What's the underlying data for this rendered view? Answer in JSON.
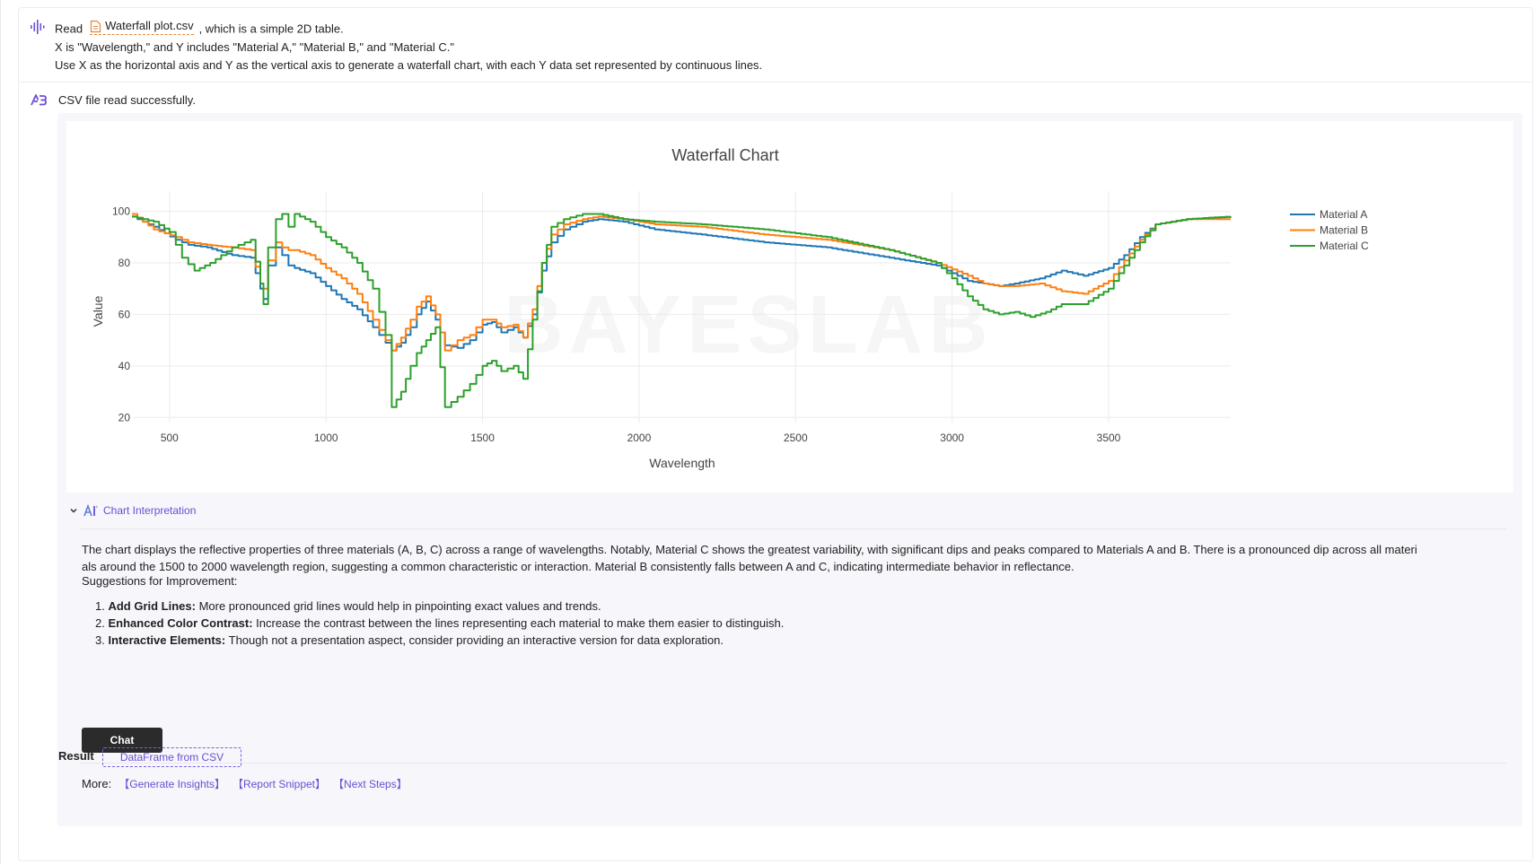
{
  "user_message": {
    "read_label": "Read",
    "file_name": "Waterfall plot.csv",
    "after_file": ", which is a simple 2D table.",
    "line2": "X is \"Wavelength,\" and Y includes \"Material A,\" \"Material B,\" and \"Material C.\"",
    "line3": "Use X as the horizontal axis and Y as the vertical axis to generate a waterfall chart, with each Y data set represented by continuous lines."
  },
  "assistant": {
    "status": "CSV file read successfully."
  },
  "chart_data": {
    "type": "line",
    "title": "Waterfall Chart",
    "xlabel": "Wavelength",
    "ylabel": "Value",
    "xlim": [
      380,
      3890
    ],
    "ylim": [
      18,
      103
    ],
    "xticks": [
      500,
      1000,
      1500,
      2000,
      2500,
      3000,
      3500
    ],
    "yticks": [
      20,
      40,
      60,
      80,
      100
    ],
    "grid": true,
    "legend_position": "top-right",
    "watermark": "BAYESLAB",
    "series": [
      {
        "name": "Material A",
        "color": "#1f77b4",
        "points": [
          [
            380,
            98
          ],
          [
            450,
            94
          ],
          [
            520,
            89
          ],
          [
            560,
            87
          ],
          [
            620,
            86
          ],
          [
            700,
            83
          ],
          [
            760,
            82
          ],
          [
            790,
            70
          ],
          [
            800,
            66
          ],
          [
            815,
            79
          ],
          [
            840,
            86
          ],
          [
            860,
            83
          ],
          [
            880,
            79
          ],
          [
            900,
            78
          ],
          [
            950,
            76
          ],
          [
            1000,
            71
          ],
          [
            1050,
            66
          ],
          [
            1100,
            62
          ],
          [
            1150,
            55
          ],
          [
            1190,
            49
          ],
          [
            1210,
            46
          ],
          [
            1240,
            49
          ],
          [
            1270,
            55
          ],
          [
            1290,
            60
          ],
          [
            1320,
            65
          ],
          [
            1350,
            58
          ],
          [
            1380,
            48
          ],
          [
            1420,
            47
          ],
          [
            1460,
            50
          ],
          [
            1500,
            56
          ],
          [
            1530,
            57
          ],
          [
            1560,
            53
          ],
          [
            1600,
            55
          ],
          [
            1630,
            51
          ],
          [
            1660,
            60
          ],
          [
            1690,
            77
          ],
          [
            1720,
            88
          ],
          [
            1760,
            93
          ],
          [
            1820,
            96
          ],
          [
            1870,
            97
          ],
          [
            1950,
            96
          ],
          [
            2050,
            93
          ],
          [
            2200,
            91
          ],
          [
            2400,
            88
          ],
          [
            2600,
            86
          ],
          [
            2800,
            82
          ],
          [
            2950,
            79
          ],
          [
            3050,
            73
          ],
          [
            3100,
            72
          ],
          [
            3150,
            71
          ],
          [
            3200,
            72
          ],
          [
            3280,
            74
          ],
          [
            3350,
            77
          ],
          [
            3420,
            75
          ],
          [
            3500,
            78
          ],
          [
            3550,
            83
          ],
          [
            3600,
            90
          ],
          [
            3650,
            95
          ],
          [
            3750,
            97
          ],
          [
            3890,
            98
          ]
        ]
      },
      {
        "name": "Material B",
        "color": "#ff7f0e",
        "points": [
          [
            380,
            99
          ],
          [
            450,
            93
          ],
          [
            520,
            90
          ],
          [
            560,
            88
          ],
          [
            620,
            87
          ],
          [
            700,
            86
          ],
          [
            760,
            85
          ],
          [
            790,
            72
          ],
          [
            800,
            70
          ],
          [
            815,
            81
          ],
          [
            840,
            88
          ],
          [
            860,
            86
          ],
          [
            880,
            85
          ],
          [
            900,
            85
          ],
          [
            950,
            83
          ],
          [
            1000,
            78
          ],
          [
            1050,
            74
          ],
          [
            1100,
            68
          ],
          [
            1150,
            58
          ],
          [
            1190,
            50
          ],
          [
            1210,
            46
          ],
          [
            1240,
            51
          ],
          [
            1270,
            58
          ],
          [
            1290,
            63
          ],
          [
            1320,
            67
          ],
          [
            1350,
            60
          ],
          [
            1380,
            46
          ],
          [
            1420,
            50
          ],
          [
            1460,
            52
          ],
          [
            1500,
            58
          ],
          [
            1530,
            58
          ],
          [
            1560,
            55
          ],
          [
            1600,
            56
          ],
          [
            1630,
            51
          ],
          [
            1660,
            62
          ],
          [
            1690,
            80
          ],
          [
            1720,
            91
          ],
          [
            1760,
            95
          ],
          [
            1820,
            97
          ],
          [
            1870,
            98
          ],
          [
            1950,
            97
          ],
          [
            2050,
            95
          ],
          [
            2200,
            94
          ],
          [
            2400,
            91
          ],
          [
            2600,
            89
          ],
          [
            2800,
            85
          ],
          [
            2950,
            80
          ],
          [
            3050,
            75
          ],
          [
            3100,
            72
          ],
          [
            3150,
            71
          ],
          [
            3200,
            71
          ],
          [
            3280,
            72
          ],
          [
            3350,
            69
          ],
          [
            3420,
            68
          ],
          [
            3500,
            73
          ],
          [
            3550,
            81
          ],
          [
            3600,
            89
          ],
          [
            3650,
            95
          ],
          [
            3750,
            97
          ],
          [
            3890,
            97
          ]
        ]
      },
      {
        "name": "Material C",
        "color": "#2ca02c",
        "points": [
          [
            380,
            98
          ],
          [
            450,
            96
          ],
          [
            500,
            92
          ],
          [
            540,
            82
          ],
          [
            580,
            77
          ],
          [
            630,
            80
          ],
          [
            700,
            86
          ],
          [
            760,
            89
          ],
          [
            790,
            72
          ],
          [
            800,
            64
          ],
          [
            815,
            86
          ],
          [
            840,
            97
          ],
          [
            860,
            99
          ],
          [
            880,
            94
          ],
          [
            900,
            99
          ],
          [
            950,
            96
          ],
          [
            1000,
            90
          ],
          [
            1050,
            86
          ],
          [
            1100,
            80
          ],
          [
            1150,
            70
          ],
          [
            1190,
            52
          ],
          [
            1210,
            24
          ],
          [
            1240,
            30
          ],
          [
            1270,
            40
          ],
          [
            1290,
            45
          ],
          [
            1320,
            50
          ],
          [
            1350,
            55
          ],
          [
            1380,
            24
          ],
          [
            1420,
            28
          ],
          [
            1460,
            33
          ],
          [
            1500,
            40
          ],
          [
            1530,
            42
          ],
          [
            1560,
            38
          ],
          [
            1600,
            40
          ],
          [
            1630,
            35
          ],
          [
            1660,
            58
          ],
          [
            1690,
            80
          ],
          [
            1720,
            94
          ],
          [
            1760,
            97
          ],
          [
            1820,
            99
          ],
          [
            1870,
            99
          ],
          [
            1950,
            97
          ],
          [
            2050,
            96
          ],
          [
            2200,
            95
          ],
          [
            2400,
            93
          ],
          [
            2600,
            90
          ],
          [
            2800,
            85
          ],
          [
            2950,
            80
          ],
          [
            3000,
            74
          ],
          [
            3050,
            67
          ],
          [
            3100,
            62
          ],
          [
            3150,
            60
          ],
          [
            3200,
            61
          ],
          [
            3250,
            59
          ],
          [
            3300,
            61
          ],
          [
            3350,
            64
          ],
          [
            3420,
            64
          ],
          [
            3500,
            70
          ],
          [
            3550,
            79
          ],
          [
            3600,
            88
          ],
          [
            3650,
            95
          ],
          [
            3750,
            97
          ],
          [
            3890,
            98
          ]
        ]
      }
    ]
  },
  "interpretation": {
    "header": "Chart Interpretation",
    "paragraph_line1": "The chart displays the reflective properties of three materials (A, B, C) across a range of wavelengths. Notably, Material C shows the greatest variability, with significant dips and peaks compared to Materials A and B. There is a pronounced dip across all materi",
    "paragraph_line2": "als around the 1500 to 2000 wavelength region, suggesting a common characteristic or interaction. Material B consistently falls between A and C, indicating intermediate behavior in reflectance.",
    "suggestions_title": "Suggestions for Improvement:",
    "suggestions": [
      {
        "number": "1.",
        "bold": "Add Grid Lines:",
        "text": " More pronounced grid lines would help in pinpointing exact values and trends."
      },
      {
        "number": "2.",
        "bold": "Enhanced Color Contrast:",
        "text": " Increase the contrast between the lines representing each material to make them easier to distinguish."
      },
      {
        "number": "3.",
        "bold": "Interactive Elements:",
        "text": " Though not a presentation aspect, consider providing an interactive version for data exploration."
      }
    ],
    "chat_button": "Chat",
    "more_label": "More:",
    "more_links": [
      "【Generate Insights】",
      "【Report Snippet】",
      "【Next Steps】"
    ]
  },
  "result": {
    "label": "Result",
    "chip": "DataFrame from CSV"
  },
  "colors": {
    "accent": "#6b4fd3",
    "file_accent": "#e5863a"
  }
}
